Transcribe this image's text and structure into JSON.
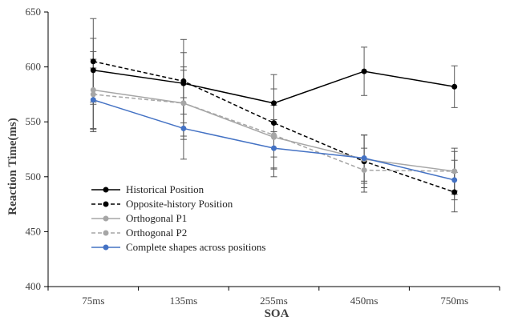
{
  "chart_data": {
    "type": "line",
    "title": "",
    "xlabel": "SOA",
    "ylabel": "Reaction Time(ms)",
    "categories": [
      "75ms",
      "135ms",
      "255ms",
      "450ms",
      "750ms"
    ],
    "ylim": [
      400,
      650
    ],
    "yticks": [
      "400",
      "450",
      "500",
      "550",
      "600",
      "650"
    ],
    "grid": false,
    "legend_position": "bottom-left",
    "series": [
      {
        "name": "Historical Position",
        "values": [
          597,
          585,
          567,
          596,
          582
        ],
        "errors": [
          29,
          28,
          26,
          22,
          19
        ],
        "color": "#000000",
        "line_style": "solid"
      },
      {
        "name": "Opposite-history Position",
        "values": [
          605,
          587,
          549,
          514,
          486
        ],
        "errors": [
          39,
          38,
          31,
          24,
          18
        ],
        "color": "#000000",
        "line_style": "dashed"
      },
      {
        "name": "Orthogonal P1",
        "values": [
          579,
          567,
          536,
          516,
          505
        ],
        "errors": [
          35,
          33,
          29,
          22,
          21
        ],
        "color": "#a6a6a6",
        "line_style": "solid"
      },
      {
        "name": "Orthogonal P2",
        "values": [
          575,
          567,
          538,
          506,
          505
        ],
        "errors": [
          32,
          30,
          30,
          20,
          18
        ],
        "color": "#a6a6a6",
        "line_style": "dashed"
      },
      {
        "name": "Complete shapes across positions",
        "values": [
          570,
          544,
          526,
          517,
          497
        ],
        "errors": [
          29,
          28,
          26,
          21,
          18
        ],
        "color": "#4472c4",
        "line_style": "solid"
      }
    ]
  }
}
